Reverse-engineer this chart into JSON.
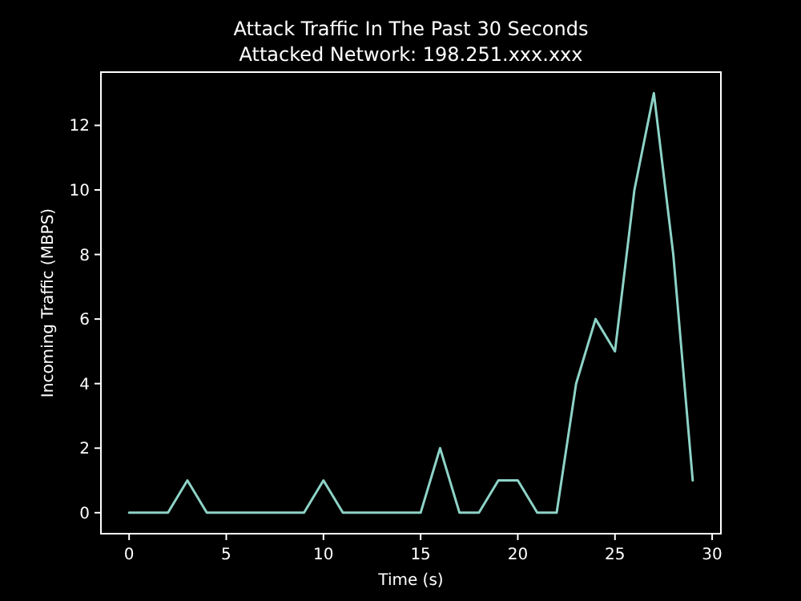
{
  "chart_data": {
    "type": "line",
    "title": "Attack Traffic In The Past 30 Seconds",
    "subtitle": "Attacked Network: 198.251.xxx.xxx",
    "xlabel": "Time (s)",
    "ylabel": "Incoming Traffic (MBPS)",
    "x": [
      0,
      1,
      2,
      3,
      4,
      5,
      6,
      7,
      8,
      9,
      10,
      11,
      12,
      13,
      14,
      15,
      16,
      17,
      18,
      19,
      20,
      21,
      22,
      23,
      24,
      25,
      26,
      27,
      28,
      29
    ],
    "series": [
      {
        "color": "#8dd3c7",
        "values": [
          0,
          0,
          0,
          1,
          0,
          0,
          0,
          0,
          0,
          0,
          1,
          0,
          0,
          0,
          0,
          0,
          2,
          0,
          0,
          1,
          1,
          0,
          0,
          4,
          6,
          5,
          10,
          13,
          8,
          1
        ]
      }
    ],
    "xlim": [
      -1.45,
      30.45
    ],
    "ylim": [
      -0.65,
      13.65
    ],
    "xticks": [
      0,
      5,
      10,
      15,
      20,
      25,
      30
    ],
    "yticks": [
      0,
      2,
      4,
      6,
      8,
      10,
      12
    ],
    "grid": false,
    "marker": "none",
    "line_style": "solid"
  }
}
